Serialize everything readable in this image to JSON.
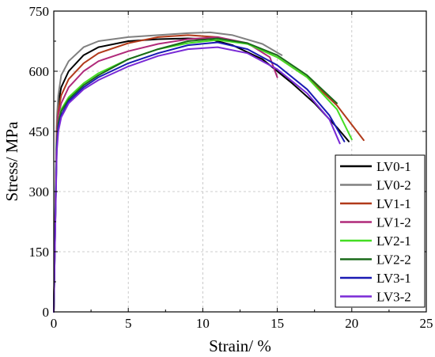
{
  "chart_data": {
    "type": "line",
    "title": "",
    "xlabel": "Strain/ %",
    "ylabel": "Stress/ MPa",
    "xlim": [
      0,
      25
    ],
    "ylim": [
      0,
      750
    ],
    "xticks": [
      0,
      5,
      10,
      15,
      20,
      25
    ],
    "yticks": [
      0,
      150,
      300,
      450,
      600,
      750
    ],
    "grid": true,
    "legend_position": "right-center",
    "series": [
      {
        "name": "LV0-1",
        "color": "#000000",
        "x": [
          0,
          0.1,
          0.2,
          0.3,
          0.5,
          1,
          2,
          3,
          5,
          7,
          9,
          10.5,
          12,
          14,
          16,
          17.5,
          19,
          19.8
        ],
        "y": [
          0,
          250,
          460,
          520,
          560,
          600,
          640,
          660,
          675,
          680,
          682,
          680,
          665,
          630,
          570,
          520,
          460,
          425
        ]
      },
      {
        "name": "LV0-2",
        "color": "#808080",
        "x": [
          0,
          0.1,
          0.2,
          0.3,
          0.5,
          1,
          2,
          3,
          5,
          7,
          9,
          10.5,
          12,
          14,
          15.3
        ],
        "y": [
          0,
          260,
          480,
          540,
          590,
          625,
          660,
          675,
          685,
          690,
          695,
          697,
          690,
          668,
          640
        ]
      },
      {
        "name": "LV1-1",
        "color": "#b13a1a",
        "x": [
          0,
          0.1,
          0.2,
          0.3,
          0.5,
          1,
          2,
          3,
          5,
          7,
          9,
          11,
          13,
          15,
          17,
          19,
          20.8
        ],
        "y": [
          0,
          240,
          450,
          500,
          540,
          580,
          620,
          645,
          670,
          685,
          690,
          685,
          668,
          635,
          585,
          515,
          428
        ]
      },
      {
        "name": "LV1-2",
        "color": "#b02a7a",
        "x": [
          0,
          0.1,
          0.2,
          0.3,
          0.5,
          1,
          2,
          3,
          5,
          7,
          9,
          11,
          13,
          14.5,
          15
        ],
        "y": [
          0,
          230,
          440,
          490,
          520,
          560,
          600,
          625,
          650,
          668,
          680,
          685,
          670,
          635,
          585
        ]
      },
      {
        "name": "LV2-1",
        "color": "#44dd22",
        "x": [
          0,
          0.1,
          0.2,
          0.3,
          0.5,
          1,
          2,
          3,
          5,
          7,
          9,
          11,
          13,
          15,
          17,
          19,
          20
        ],
        "y": [
          0,
          220,
          420,
          470,
          505,
          535,
          570,
          595,
          630,
          655,
          670,
          678,
          668,
          635,
          585,
          505,
          430
        ]
      },
      {
        "name": "LV2-2",
        "color": "#1a6a1a",
        "x": [
          0,
          0.1,
          0.2,
          0.3,
          0.5,
          1,
          2,
          3,
          5,
          7,
          9,
          11,
          13,
          15,
          17,
          19
        ],
        "y": [
          0,
          220,
          420,
          470,
          500,
          530,
          565,
          590,
          630,
          655,
          675,
          682,
          670,
          640,
          590,
          520
        ]
      },
      {
        "name": "LV3-1",
        "color": "#1a1ab4",
        "x": [
          0,
          0.1,
          0.2,
          0.3,
          0.5,
          1,
          2,
          3,
          5,
          7,
          9,
          11,
          13,
          15,
          17,
          18.5,
          19.5
        ],
        "y": [
          0,
          220,
          410,
          460,
          490,
          525,
          560,
          585,
          620,
          645,
          665,
          672,
          655,
          615,
          555,
          490,
          425
        ]
      },
      {
        "name": "LV3-2",
        "color": "#7a2ad6",
        "x": [
          0,
          0.1,
          0.2,
          0.3,
          0.5,
          1,
          2,
          3,
          5,
          7,
          9,
          11,
          13,
          15,
          17,
          18.5,
          19.2
        ],
        "y": [
          0,
          210,
          400,
          450,
          485,
          520,
          555,
          578,
          612,
          638,
          655,
          660,
          645,
          605,
          545,
          480,
          420
        ]
      }
    ]
  }
}
